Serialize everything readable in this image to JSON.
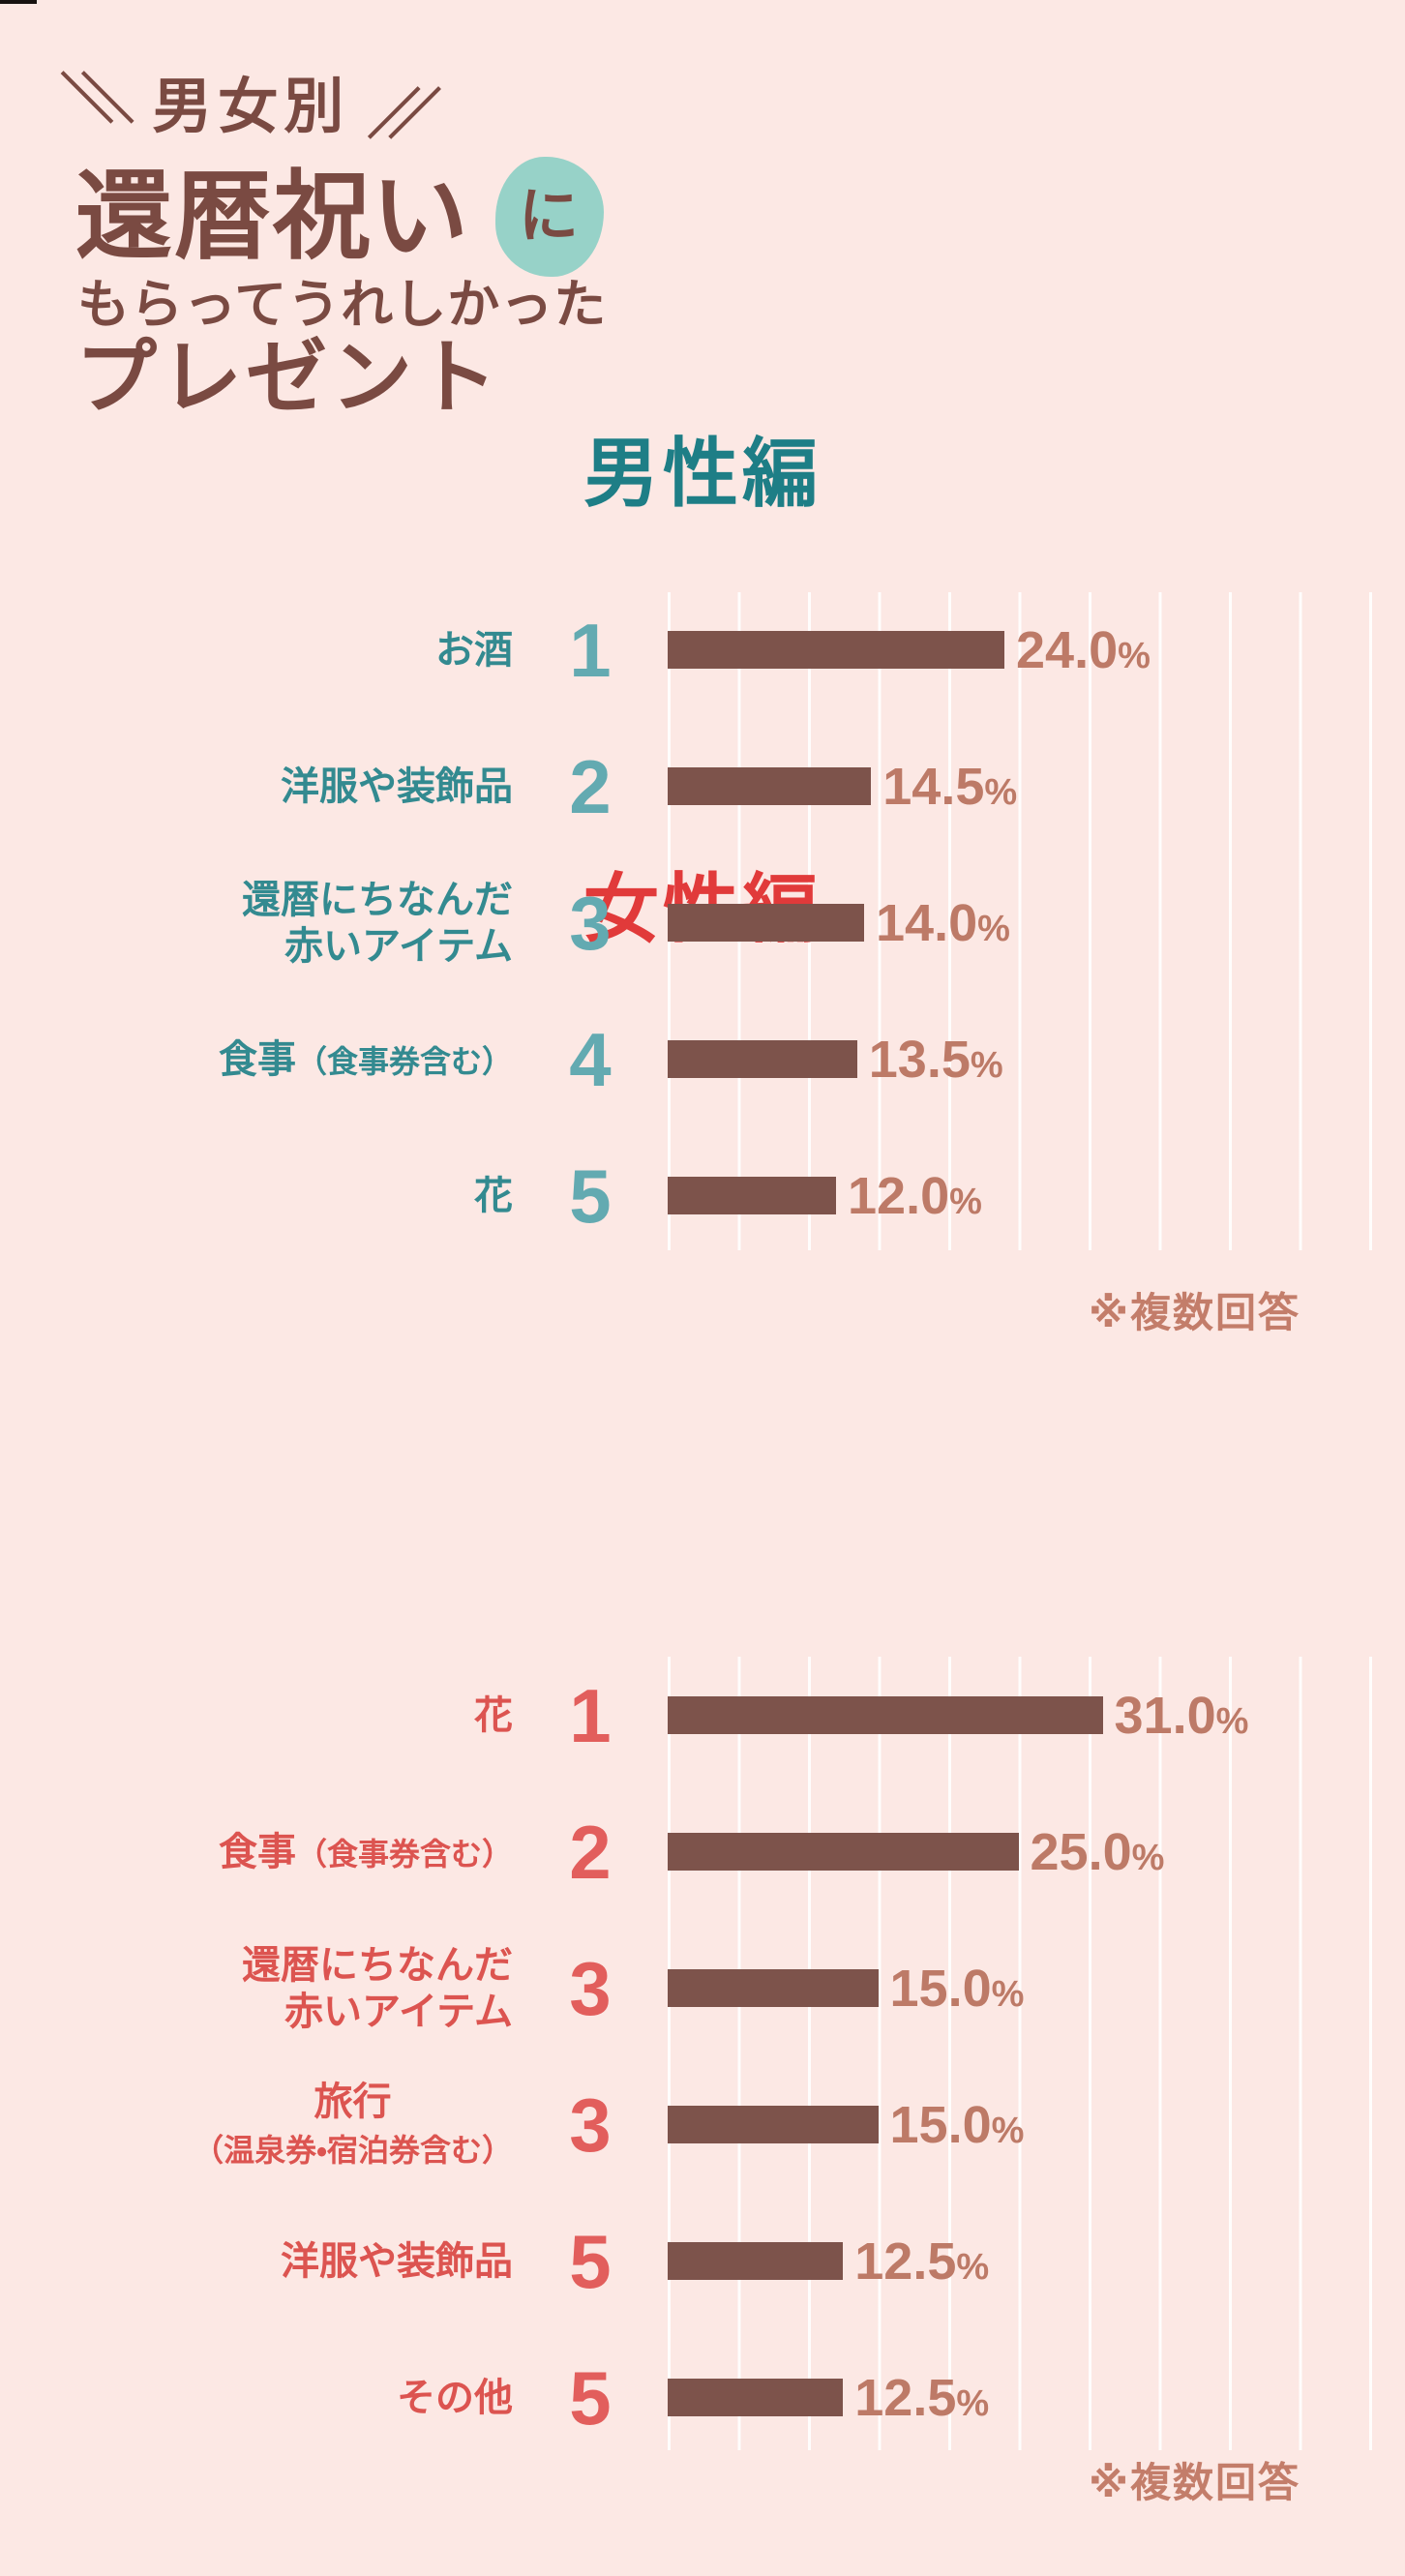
{
  "colors": {
    "background": "#fce8e4",
    "title_text": "#7a4a42",
    "badge_bg": "#97d2c8",
    "bar": "#7d534b",
    "value_text": "#bd7a67",
    "gridline": "rgba(255,255,255,0.9)",
    "footnote_text": "#c37d6a",
    "corner_mark": "#171210"
  },
  "title": {
    "slash_left": "＼＼",
    "tagline": "男女別",
    "slash_right": "／／",
    "main": "還暦祝い",
    "particle": "に",
    "sub": "もらってうれしかった",
    "main2": "プレゼント"
  },
  "chart_data": [
    {
      "type": "bar",
      "orientation": "horizontal",
      "title": "男性編",
      "categories": [
        "お酒",
        "洋服や装飾品",
        "還暦にちなんだ赤いアイテム",
        "食事（食事券含む）",
        "花"
      ],
      "values": [
        24.0,
        14.5,
        14.0,
        13.5,
        12.0
      ],
      "ranks": [
        1,
        2,
        3,
        4,
        5
      ],
      "unit": "%",
      "xlim": [
        0,
        52.5
      ],
      "grid_interval": 5,
      "grid": true,
      "legend": false,
      "note": "※複数回答"
    },
    {
      "type": "bar",
      "orientation": "horizontal",
      "title": "女性編",
      "categories": [
        "花",
        "食事（食事券含む）",
        "還暦にちなんだ赤いアイテム",
        "旅行（温泉券・宿泊券含む）",
        "洋服や装飾品",
        "その他"
      ],
      "values": [
        31.0,
        25.0,
        15.0,
        15.0,
        12.5,
        12.5
      ],
      "ranks": [
        1,
        2,
        3,
        3,
        5,
        5
      ],
      "unit": "%",
      "xlim": [
        0,
        52.5
      ],
      "grid_interval": 5,
      "grid": true,
      "legend": false,
      "note": "※複数回答"
    }
  ],
  "sections": [
    {
      "id": "men",
      "heading": "男性編",
      "unit": "%",
      "footnote": "※複数回答",
      "colors": {
        "heading": "#1e7e86",
        "label": "#338a90",
        "rank": "#63aab1"
      },
      "rows": [
        {
          "rank": "1",
          "value": 24.0,
          "value_label": "24.0",
          "label_lines": [
            {
              "segs": [
                {
                  "t": "お酒"
                }
              ]
            }
          ]
        },
        {
          "rank": "2",
          "value": 14.5,
          "value_label": "14.5",
          "label_lines": [
            {
              "segs": [
                {
                  "t": "洋服や装飾品"
                }
              ]
            }
          ]
        },
        {
          "rank": "3",
          "value": 14.0,
          "value_label": "14.0",
          "label_lines": [
            {
              "segs": [
                {
                  "t": "還暦にちなんだ"
                }
              ]
            },
            {
              "segs": [
                {
                  "t": "赤いアイテム"
                }
              ]
            }
          ]
        },
        {
          "rank": "4",
          "value": 13.5,
          "value_label": "13.5",
          "label_lines": [
            {
              "segs": [
                {
                  "t": "食事"
                },
                {
                  "t": "（食事券含む）",
                  "small": true
                }
              ]
            }
          ]
        },
        {
          "rank": "5",
          "value": 12.0,
          "value_label": "12.0",
          "label_lines": [
            {
              "segs": [
                {
                  "t": "花"
                }
              ]
            }
          ]
        }
      ]
    },
    {
      "id": "women",
      "heading": "女性編",
      "unit": "%",
      "footnote": "※複数回答",
      "colors": {
        "heading": "#e13a3a",
        "label": "#dc5450",
        "rank": "#e25e5c"
      },
      "rows": [
        {
          "rank": "1",
          "value": 31.0,
          "value_label": "31.0",
          "label_lines": [
            {
              "segs": [
                {
                  "t": "花"
                }
              ]
            }
          ]
        },
        {
          "rank": "2",
          "value": 25.0,
          "value_label": "25.0",
          "label_lines": [
            {
              "segs": [
                {
                  "t": "食事"
                },
                {
                  "t": "（食事券含む）",
                  "small": true
                }
              ]
            }
          ]
        },
        {
          "rank": "3",
          "value": 15.0,
          "value_label": "15.0",
          "label_lines": [
            {
              "segs": [
                {
                  "t": "還暦にちなんだ"
                }
              ]
            },
            {
              "segs": [
                {
                  "t": "赤いアイテム"
                }
              ]
            }
          ]
        },
        {
          "rank": "3",
          "value": 15.0,
          "value_label": "15.0",
          "label_lines": [
            {
              "align": "center",
              "segs": [
                {
                  "t": "旅行"
                }
              ]
            },
            {
              "segs": [
                {
                  "t": "（温泉券・宿泊券含む）",
                  "small": true
                }
              ]
            }
          ]
        },
        {
          "rank": "5",
          "value": 12.5,
          "value_label": "12.5",
          "label_lines": [
            {
              "segs": [
                {
                  "t": "洋服や装飾品"
                }
              ]
            }
          ]
        },
        {
          "rank": "5",
          "value": 12.5,
          "value_label": "12.5",
          "label_lines": [
            {
              "segs": [
                {
                  "t": "その他"
                }
              ]
            }
          ]
        }
      ]
    }
  ]
}
